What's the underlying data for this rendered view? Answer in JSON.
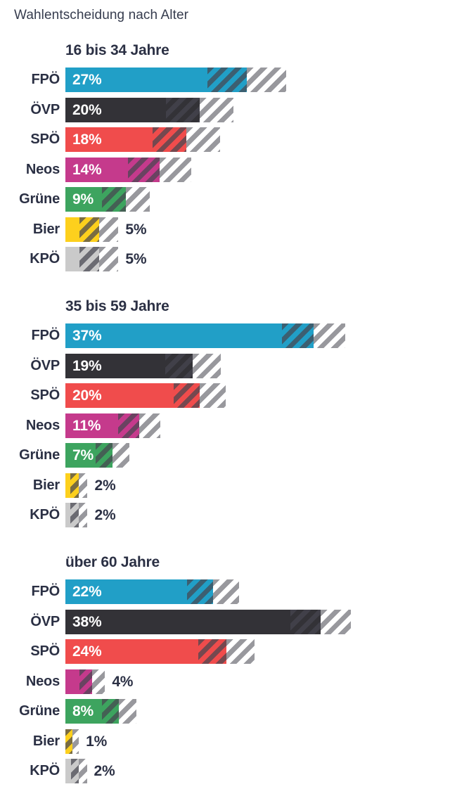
{
  "title": "Wahlentscheidung nach Alter",
  "colors": {
    "background": "#ffffff",
    "text": "#2b3044",
    "title_text": "#363c4e",
    "bar_value_label": "#ffffff",
    "hatch_on_bar": "rgba(70,70,80,0.72)",
    "hatch_outside_bar": "#98989d"
  },
  "chart_data": {
    "type": "bar",
    "orientation": "horizontal",
    "title": "Wahlentscheidung nach Alter",
    "value_unit": "%",
    "xlim": [
      0,
      45
    ],
    "grid": false,
    "legend": false,
    "hatch_style": "diagonal-stripes-around-bar-end",
    "party_colors": {
      "FPÖ": "#219fc7",
      "ÖVP": "#333237",
      "SPÖ": "#f04c4c",
      "Neos": "#c53a8c",
      "Grüne": "#3da45f",
      "Bier": "#fdd01d",
      "KPÖ": "#cacaca"
    },
    "groups": [
      {
        "label": "16 bis 34 Jahre",
        "bars": [
          {
            "party": "FPÖ",
            "value": 27,
            "label": "27%",
            "margin_pp": 5.9,
            "label_inside": true
          },
          {
            "party": "ÖVP",
            "value": 20,
            "label": "20%",
            "margin_pp": 5.0,
            "label_inside": true
          },
          {
            "party": "SPÖ",
            "value": 18,
            "label": "18%",
            "margin_pp": 5.0,
            "label_inside": true
          },
          {
            "party": "Neos",
            "value": 14,
            "label": "14%",
            "margin_pp": 4.7,
            "label_inside": true
          },
          {
            "party": "Grüne",
            "value": 9,
            "label": "9%",
            "margin_pp": 3.6,
            "label_inside": true
          },
          {
            "party": "Bier",
            "value": 5,
            "label": "5%",
            "margin_pp": 2.9,
            "label_inside": false
          },
          {
            "party": "KPÖ",
            "value": 5,
            "label": "5%",
            "margin_pp": 2.9,
            "label_inside": false
          }
        ]
      },
      {
        "label": "35 bis 59 Jahre",
        "bars": [
          {
            "party": "FPÖ",
            "value": 37,
            "label": "37%",
            "margin_pp": 4.7,
            "label_inside": true
          },
          {
            "party": "ÖVP",
            "value": 19,
            "label": "19%",
            "margin_pp": 4.1,
            "label_inside": true
          },
          {
            "party": "SPÖ",
            "value": 20,
            "label": "20%",
            "margin_pp": 3.9,
            "label_inside": true
          },
          {
            "party": "Neos",
            "value": 11,
            "label": "11%",
            "margin_pp": 3.1,
            "label_inside": true
          },
          {
            "party": "Grüne",
            "value": 7,
            "label": "7%",
            "margin_pp": 2.5,
            "label_inside": true
          },
          {
            "party": "Bier",
            "value": 2,
            "label": "2%",
            "margin_pp": 1.3,
            "label_inside": false
          },
          {
            "party": "KPÖ",
            "value": 2,
            "label": "2%",
            "margin_pp": 1.3,
            "label_inside": false
          }
        ]
      },
      {
        "label": "über 60 Jahre",
        "bars": [
          {
            "party": "FPÖ",
            "value": 22,
            "label": "22%",
            "margin_pp": 3.9,
            "label_inside": true
          },
          {
            "party": "ÖVP",
            "value": 38,
            "label": "38%",
            "margin_pp": 4.5,
            "label_inside": true
          },
          {
            "party": "SPÖ",
            "value": 24,
            "label": "24%",
            "margin_pp": 4.2,
            "label_inside": true
          },
          {
            "party": "Neos",
            "value": 4,
            "label": "4%",
            "margin_pp": 1.9,
            "label_inside": false
          },
          {
            "party": "Grüne",
            "value": 8,
            "label": "8%",
            "margin_pp": 2.6,
            "label_inside": true
          },
          {
            "party": "Bier",
            "value": 1,
            "label": "1%",
            "margin_pp": 1.0,
            "label_inside": false
          },
          {
            "party": "KPÖ",
            "value": 2,
            "label": "2%",
            "margin_pp": 1.2,
            "label_inside": false
          }
        ]
      }
    ]
  }
}
